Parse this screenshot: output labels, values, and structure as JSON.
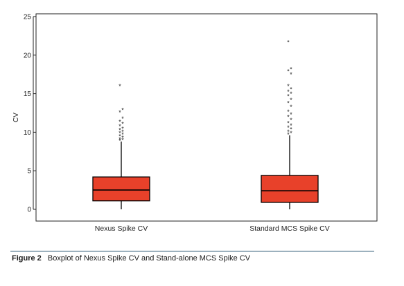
{
  "chart_data": {
    "type": "boxplot",
    "ylabel": "CV",
    "ylim": [
      0,
      25
    ],
    "yticks": [
      0,
      5,
      10,
      15,
      20,
      25
    ],
    "categories": [
      "Nexus Spike CV",
      "Standard MCS Spike CV"
    ],
    "boxes": [
      {
        "category": "Nexus Spike CV",
        "whisker_low": 0.0,
        "q1": 1.1,
        "median": 2.5,
        "q3": 4.2,
        "whisker_high": 8.8,
        "outliers": [
          8.9,
          9.0,
          9.1,
          9.3,
          9.5,
          9.7,
          9.9,
          10.1,
          10.3,
          10.5,
          10.8,
          11.1,
          11.4,
          11.8,
          12.6,
          12.9,
          16.0
        ]
      },
      {
        "category": "Standard MCS Spike CV",
        "whisker_low": 0.0,
        "q1": 0.9,
        "median": 2.4,
        "q3": 4.4,
        "whisker_high": 9.6,
        "outliers": [
          9.7,
          9.9,
          10.1,
          10.4,
          10.6,
          10.9,
          11.2,
          11.6,
          12.0,
          12.3,
          12.7,
          13.3,
          13.8,
          14.2,
          14.7,
          15.0,
          15.3,
          15.6,
          16.0,
          17.5,
          17.9,
          18.2,
          21.7
        ]
      }
    ],
    "box_color": "#e8412a",
    "grid": false,
    "legend": "none"
  },
  "caption": {
    "label": "Figure 2",
    "text": "Boxplot of Nexus Spike CV and Stand-alone MCS Spike CV"
  }
}
